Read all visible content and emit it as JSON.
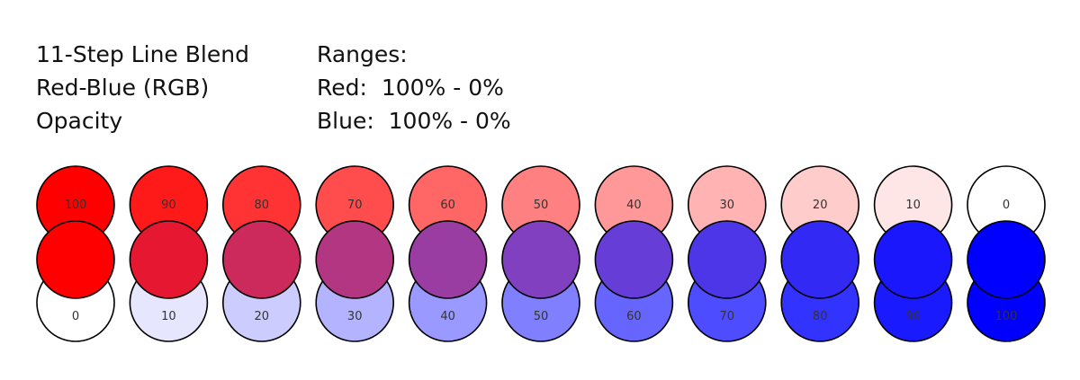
{
  "title": {
    "line1": "11-Step Line Blend",
    "line2": "Red-Blue (RGB)",
    "line3": "Opacity"
  },
  "ranges": {
    "heading": "Ranges:",
    "red": "Red:  100% - 0%",
    "blue": "Blue:  100% - 0%"
  },
  "colors": {
    "red": "#ff0000",
    "blue": "#0000ff",
    "stroke": "#000000",
    "background": "#ffffff"
  },
  "steps": [
    {
      "red_opacity": 100,
      "blue_opacity": 0,
      "top_label": "100",
      "bottom_label": "0"
    },
    {
      "red_opacity": 90,
      "blue_opacity": 10,
      "top_label": "90",
      "bottom_label": "10"
    },
    {
      "red_opacity": 80,
      "blue_opacity": 20,
      "top_label": "80",
      "bottom_label": "20"
    },
    {
      "red_opacity": 70,
      "blue_opacity": 30,
      "top_label": "70",
      "bottom_label": "30"
    },
    {
      "red_opacity": 60,
      "blue_opacity": 40,
      "top_label": "60",
      "bottom_label": "40"
    },
    {
      "red_opacity": 50,
      "blue_opacity": 50,
      "top_label": "50",
      "bottom_label": "50"
    },
    {
      "red_opacity": 40,
      "blue_opacity": 60,
      "top_label": "40",
      "bottom_label": "60"
    },
    {
      "red_opacity": 30,
      "blue_opacity": 70,
      "top_label": "30",
      "bottom_label": "70"
    },
    {
      "red_opacity": 20,
      "blue_opacity": 80,
      "top_label": "20",
      "bottom_label": "80"
    },
    {
      "red_opacity": 10,
      "blue_opacity": 90,
      "top_label": "10",
      "bottom_label": "90"
    },
    {
      "red_opacity": 0,
      "blue_opacity": 100,
      "top_label": "0",
      "bottom_label": "100"
    }
  ]
}
